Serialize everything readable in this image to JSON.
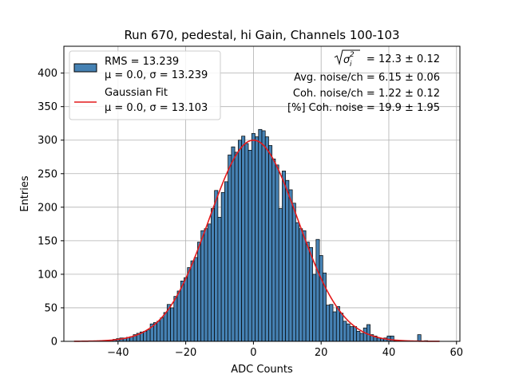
{
  "chart_data": {
    "type": "bar",
    "title": "Run 670, pedestal, hi Gain, Channels 100-103",
    "xlabel": "ADC Counts",
    "ylabel": "Entries",
    "xlim": [
      -56,
      61
    ],
    "ylim": [
      0,
      440
    ],
    "xticks": [
      -40,
      -20,
      0,
      20,
      40,
      60
    ],
    "yticks": [
      0,
      50,
      100,
      150,
      200,
      250,
      300,
      350,
      400
    ],
    "grid": true,
    "colors": {
      "bars": "#4682b4",
      "bar_edge": "#000000",
      "fit": "#e31a1c"
    },
    "bin_width": 1,
    "histogram": {
      "bin_centers": [
        -53,
        -52,
        -51,
        -50,
        -49,
        -48,
        -47,
        -46,
        -45,
        -44,
        -43,
        -42,
        -41,
        -40,
        -39,
        -38,
        -37,
        -36,
        -35,
        -34,
        -33,
        -32,
        -31,
        -30,
        -29,
        -28,
        -27,
        -26,
        -25,
        -24,
        -23,
        -22,
        -21,
        -20,
        -19,
        -18,
        -17,
        -16,
        -15,
        -14,
        -13,
        -12,
        -11,
        -10,
        -9,
        -8,
        -7,
        -6,
        -5,
        -4,
        -3,
        -2,
        -1,
        0,
        1,
        2,
        3,
        4,
        5,
        6,
        7,
        8,
        9,
        10,
        11,
        12,
        13,
        14,
        15,
        16,
        17,
        18,
        19,
        20,
        21,
        22,
        23,
        24,
        25,
        26,
        27,
        28,
        29,
        30,
        31,
        32,
        33,
        34,
        35,
        36,
        37,
        38,
        39,
        40,
        41,
        42,
        43,
        44,
        45,
        46,
        47,
        48,
        49,
        50,
        51,
        52,
        53,
        54,
        55
      ],
      "counts": [
        0,
        0,
        0,
        0,
        0,
        0,
        0,
        0,
        1,
        1,
        1,
        2,
        3,
        4,
        5,
        5,
        6,
        7,
        10,
        12,
        14,
        15,
        17,
        26,
        28,
        30,
        35,
        43,
        55,
        50,
        67,
        75,
        90,
        95,
        110,
        120,
        125,
        148,
        165,
        168,
        175,
        198,
        225,
        185,
        222,
        238,
        278,
        290,
        282,
        300,
        306,
        295,
        285,
        310,
        305,
        316,
        314,
        305,
        292,
        272,
        263,
        198,
        254,
        240,
        226,
        206,
        177,
        168,
        165,
        148,
        140,
        100,
        152,
        128,
        102,
        54,
        55,
        44,
        52,
        42,
        30,
        26,
        22,
        22,
        15,
        12,
        20,
        25,
        10,
        8,
        5,
        4,
        5,
        8,
        8,
        1,
        1,
        1,
        1,
        0,
        0,
        0,
        10,
        0,
        1,
        0,
        0,
        0,
        0,
        0,
        0
      ]
    },
    "gaussian_fit": {
      "mu": 0.0,
      "sigma": 13.103,
      "amplitude": 300,
      "x_range": [
        -53,
        55
      ]
    },
    "legend": {
      "position": "upper-left",
      "entries": [
        {
          "label_line1": "RMS = 13.239",
          "label_line2": "μ = 0.0, σ = 13.239",
          "kind": "patch"
        },
        {
          "label_line1": "Gaussian Fit",
          "label_line2": "μ = 0.0, σ = 13.103",
          "kind": "line"
        }
      ]
    },
    "annotations": {
      "rms_noise": "= 12.3 ± 0.12",
      "avg_noise": "Avg. noise/ch = 6.15 ± 0.06",
      "coh_noise": "Coh. noise/ch = 1.22 ± 0.12",
      "coh_noise_pct": "[%] Coh. noise = 19.9 ± 1.95"
    }
  }
}
